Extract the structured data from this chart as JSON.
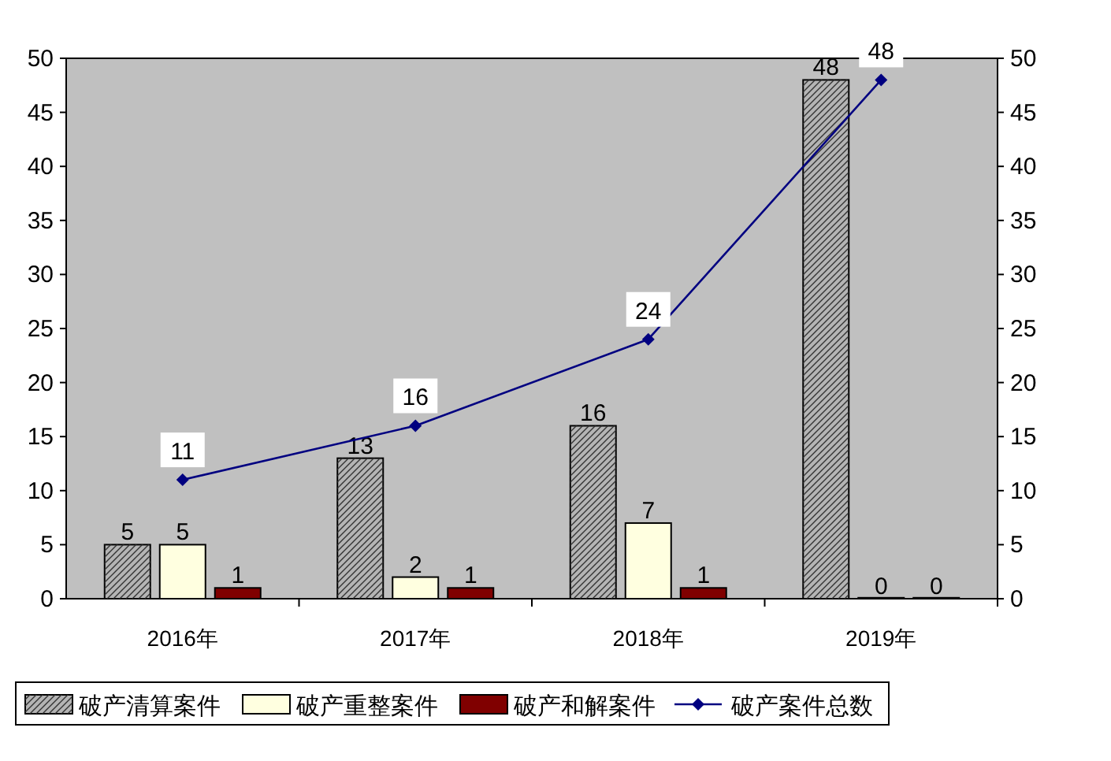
{
  "chart_data": {
    "type": "bar",
    "categories": [
      "2016年",
      "2017年",
      "2018年",
      "2019年"
    ],
    "series": [
      {
        "name": "破产清算案件",
        "color": "#b4b4b4",
        "values": [
          5,
          13,
          16,
          48
        ]
      },
      {
        "name": "破产重整案件",
        "color": "#ffffe0",
        "values": [
          5,
          2,
          7,
          0
        ]
      },
      {
        "name": "破产和解案件",
        "color": "#800000",
        "values": [
          1,
          1,
          1,
          0
        ]
      },
      {
        "name": "破产案件总数",
        "type": "line",
        "color": "#000080",
        "values": [
          11,
          16,
          24,
          48
        ]
      }
    ],
    "ylim": [
      0,
      50
    ],
    "yticks": [
      0,
      5,
      10,
      15,
      20,
      25,
      30,
      35,
      40,
      45,
      50
    ],
    "y2lim": [
      0,
      50
    ],
    "y2ticks": [
      0,
      5,
      10,
      15,
      20,
      25,
      30,
      35,
      40,
      45,
      50
    ],
    "data_labels": true,
    "legend": "bottom",
    "grid": false,
    "marker": "diamond",
    "line_style": "solid"
  }
}
